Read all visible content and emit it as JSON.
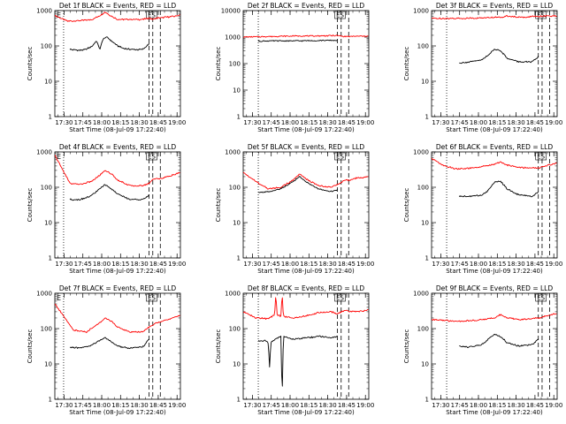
{
  "figure": {
    "xlabel": "Start Time (08-Jul-09 17:22:40)",
    "ylabel": "Counts/sec",
    "x_tick_labels": [
      "17:30",
      "17:45",
      "18:00",
      "18:15",
      "18:30",
      "18:45",
      "19:00"
    ],
    "y_tick_labels": [
      "1",
      "10",
      "100",
      "1000"
    ],
    "colors": {
      "events": "#000000",
      "lld": "#ff0000",
      "axes": "#000000",
      "background": "#ffffff"
    }
  },
  "chart_data": [
    {
      "type": "line",
      "title": "Det 1f BLACK = Events, RED = LLD",
      "corner_labels": {
        "left": "E",
        "right": "ES"
      },
      "x_unit": "minutes after 17:22:40",
      "xlim": [
        0,
        100
      ],
      "ylim": [
        1,
        1000
      ],
      "yscale": "log",
      "dotted_vlines_x": [
        7
      ],
      "dashed_vlines_x": [
        75,
        78,
        84
      ],
      "series": [
        {
          "name": "RED = LLD",
          "color": "#ff0000",
          "x": [
            0,
            10,
            20,
            30,
            35,
            40,
            45,
            50,
            60,
            70,
            75,
            78,
            80,
            86,
            90,
            96,
            100
          ],
          "values": [
            720,
            500,
            520,
            560,
            700,
            900,
            700,
            560,
            560,
            560,
            620,
            560,
            600,
            640,
            660,
            700,
            760
          ]
        },
        {
          "name": "BLACK = Events",
          "color": "#000000",
          "x": [
            12,
            20,
            25,
            30,
            33,
            36,
            38,
            41,
            45,
            50,
            55,
            60,
            65,
            70,
            75
          ],
          "values": [
            80,
            75,
            80,
            100,
            140,
            80,
            150,
            180,
            140,
            100,
            85,
            80,
            78,
            80,
            115
          ]
        }
      ]
    },
    {
      "type": "line",
      "title": "Det 2f BLACK = Events, RED = LLD",
      "corner_labels": {
        "left": "",
        "right": "ES"
      },
      "x_unit": "minutes after 17:22:40",
      "xlim": [
        0,
        100
      ],
      "ylim": [
        1,
        10000
      ],
      "yscale": "log",
      "y_tick_labels": [
        "1",
        "10",
        "100",
        "1000",
        "10000"
      ],
      "dotted_vlines_x": [
        12
      ],
      "dashed_vlines_x": [
        75,
        78,
        84
      ],
      "series": [
        {
          "name": "RED = LLD",
          "color": "#ff0000",
          "x": [
            0,
            20,
            40,
            60,
            75,
            80,
            100
          ],
          "values": [
            1000,
            1050,
            1100,
            1100,
            1150,
            1050,
            1100
          ]
        },
        {
          "name": "BLACK = Events",
          "color": "#000000",
          "x": [
            12,
            20,
            40,
            60,
            75
          ],
          "values": [
            700,
            720,
            720,
            740,
            760
          ]
        }
      ]
    },
    {
      "type": "line",
      "title": "Det 3f BLACK = Events, RED = LLD",
      "corner_labels": {
        "left": "",
        "right": "ES"
      },
      "x_unit": "minutes after 17:22:40",
      "xlim": [
        0,
        100
      ],
      "ylim": [
        1,
        1000
      ],
      "yscale": "log",
      "dotted_vlines_x": [
        12
      ],
      "dashed_vlines_x": [
        85,
        88,
        94
      ],
      "series": [
        {
          "name": "RED = LLD",
          "color": "#ff0000",
          "x": [
            0,
            20,
            40,
            55,
            60,
            70,
            85,
            100
          ],
          "values": [
            600,
            600,
            620,
            650,
            700,
            640,
            700,
            700
          ]
        },
        {
          "name": "BLACK = Events",
          "color": "#000000",
          "x": [
            22,
            30,
            40,
            45,
            50,
            55,
            60,
            70,
            80,
            85
          ],
          "values": [
            33,
            35,
            40,
            55,
            80,
            75,
            45,
            35,
            35,
            50
          ]
        }
      ]
    },
    {
      "type": "line",
      "title": "Det 4f BLACK = Events, RED = LLD",
      "corner_labels": {
        "left": "E",
        "right": "ES"
      },
      "x_unit": "minutes after 17:22:40",
      "xlim": [
        0,
        100
      ],
      "ylim": [
        1,
        1000
      ],
      "yscale": "log",
      "dotted_vlines_x": [
        7
      ],
      "dashed_vlines_x": [
        75,
        78,
        84
      ],
      "series": [
        {
          "name": "RED = LLD",
          "color": "#ff0000",
          "x": [
            0,
            8,
            12,
            20,
            30,
            35,
            40,
            45,
            50,
            60,
            70,
            75,
            78,
            85,
            90,
            100
          ],
          "values": [
            800,
            240,
            130,
            120,
            150,
            210,
            300,
            240,
            160,
            110,
            110,
            130,
            170,
            180,
            200,
            260
          ]
        },
        {
          "name": "BLACK = Events",
          "color": "#000000",
          "x": [
            12,
            20,
            28,
            35,
            40,
            45,
            50,
            60,
            70,
            75
          ],
          "values": [
            45,
            45,
            55,
            85,
            120,
            90,
            65,
            45,
            45,
            60
          ]
        }
      ]
    },
    {
      "type": "line",
      "title": "Det 5f BLACK = Events, RED = LLD",
      "corner_labels": {
        "left": "",
        "right": "ES"
      },
      "x_unit": "minutes after 17:22:40",
      "xlim": [
        0,
        100
      ],
      "ylim": [
        1,
        1000
      ],
      "yscale": "log",
      "dotted_vlines_x": [
        12
      ],
      "dashed_vlines_x": [
        75,
        78,
        84
      ],
      "series": [
        {
          "name": "RED = LLD",
          "color": "#ff0000",
          "x": [
            0,
            12,
            20,
            30,
            40,
            45,
            50,
            60,
            70,
            75,
            80,
            90,
            100
          ],
          "values": [
            260,
            130,
            90,
            100,
            160,
            240,
            170,
            110,
            100,
            120,
            150,
            180,
            200
          ]
        },
        {
          "name": "BLACK = Events",
          "color": "#000000",
          "x": [
            12,
            20,
            30,
            40,
            45,
            50,
            60,
            70,
            75
          ],
          "values": [
            70,
            75,
            90,
            150,
            200,
            140,
            90,
            75,
            85
          ]
        }
      ]
    },
    {
      "type": "line",
      "title": "Det 6f BLACK = Events, RED = LLD",
      "corner_labels": {
        "left": "",
        "right": "ES"
      },
      "x_unit": "minutes after 17:22:40",
      "xlim": [
        0,
        100
      ],
      "ylim": [
        1,
        1000
      ],
      "yscale": "log",
      "dotted_vlines_x": [
        12
      ],
      "dashed_vlines_x": [
        85,
        88,
        94
      ],
      "series": [
        {
          "name": "RED = LLD",
          "color": "#ff0000",
          "x": [
            0,
            10,
            20,
            30,
            40,
            50,
            55,
            60,
            70,
            85,
            100
          ],
          "values": [
            650,
            400,
            330,
            340,
            380,
            450,
            520,
            420,
            360,
            350,
            500
          ]
        },
        {
          "name": "BLACK = Events",
          "color": "#000000",
          "x": [
            22,
            30,
            40,
            45,
            50,
            55,
            60,
            70,
            80,
            85
          ],
          "values": [
            55,
            55,
            60,
            80,
            140,
            150,
            90,
            60,
            55,
            75
          ]
        }
      ]
    },
    {
      "type": "line",
      "title": "Det 7f BLACK = Events, RED = LLD",
      "corner_labels": {
        "left": "E",
        "right": "ES"
      },
      "x_unit": "minutes after 17:22:40",
      "xlim": [
        0,
        100
      ],
      "ylim": [
        1,
        1000
      ],
      "yscale": "log",
      "dotted_vlines_x": [
        7
      ],
      "dashed_vlines_x": [
        75,
        78,
        84
      ],
      "series": [
        {
          "name": "RED = LLD",
          "color": "#ff0000",
          "x": [
            0,
            8,
            15,
            25,
            35,
            40,
            45,
            50,
            60,
            70,
            75,
            80,
            90,
            100
          ],
          "values": [
            500,
            200,
            90,
            80,
            140,
            200,
            160,
            110,
            80,
            80,
            110,
            140,
            180,
            240
          ]
        },
        {
          "name": "BLACK = Events",
          "color": "#000000",
          "x": [
            12,
            20,
            28,
            35,
            40,
            45,
            50,
            60,
            70,
            75
          ],
          "values": [
            30,
            28,
            32,
            45,
            55,
            42,
            32,
            28,
            30,
            50
          ]
        }
      ]
    },
    {
      "type": "line",
      "title": "Det 8f BLACK = Events, RED = LLD",
      "corner_labels": {
        "left": "",
        "right": "ES"
      },
      "x_unit": "minutes after 17:22:40",
      "xlim": [
        0,
        100
      ],
      "ylim": [
        1,
        1000
      ],
      "yscale": "log",
      "dotted_vlines_x": [
        12
      ],
      "dashed_vlines_x": [
        75,
        78,
        84
      ],
      "series": [
        {
          "name": "RED = LLD",
          "color": "#ff0000",
          "x": [
            0,
            10,
            20,
            25,
            26,
            27,
            30,
            31,
            32,
            40,
            50,
            60,
            70,
            75,
            80,
            90,
            100
          ],
          "values": [
            300,
            200,
            190,
            250,
            1000,
            250,
            220,
            1000,
            220,
            200,
            230,
            280,
            300,
            260,
            320,
            300,
            340
          ]
        },
        {
          "name": "BLACK = Events",
          "color": "#000000",
          "x": [
            12,
            18,
            20,
            21,
            22,
            25,
            30,
            31,
            32,
            40,
            50,
            60,
            70,
            75
          ],
          "values": [
            45,
            45,
            40,
            8,
            40,
            50,
            60,
            1,
            60,
            50,
            55,
            60,
            55,
            60
          ]
        }
      ]
    },
    {
      "type": "line",
      "title": "Det 9f BLACK = Events, RED = LLD",
      "corner_labels": {
        "left": "",
        "right": "ES"
      },
      "x_unit": "minutes after 17:22:40",
      "xlim": [
        0,
        100
      ],
      "ylim": [
        1,
        1000
      ],
      "yscale": "log",
      "dotted_vlines_x": [
        12
      ],
      "dashed_vlines_x": [
        85,
        88,
        94
      ],
      "series": [
        {
          "name": "RED = LLD",
          "color": "#ff0000",
          "x": [
            0,
            20,
            35,
            50,
            55,
            60,
            70,
            85,
            100
          ],
          "values": [
            180,
            160,
            170,
            200,
            250,
            200,
            180,
            200,
            270
          ]
        },
        {
          "name": "BLACK = Events",
          "color": "#000000",
          "x": [
            22,
            30,
            40,
            45,
            50,
            55,
            60,
            70,
            80,
            85
          ],
          "values": [
            32,
            30,
            35,
            50,
            70,
            60,
            40,
            32,
            35,
            50
          ]
        }
      ]
    }
  ]
}
